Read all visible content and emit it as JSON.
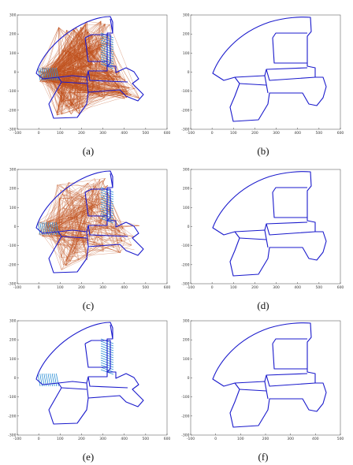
{
  "figure": {
    "panels": [
      {
        "id": "a",
        "caption": "(a)",
        "style": "edges-dense",
        "x_ticks": [
          "-100",
          "0",
          "100",
          "200",
          "300",
          "400",
          "500",
          "600"
        ],
        "y_ticks": [
          "300",
          "200",
          "100",
          "0",
          "-100",
          "-200",
          "-300"
        ]
      },
      {
        "id": "b",
        "caption": "(b)",
        "style": "clean",
        "x_ticks": [
          "-100",
          "0",
          "100",
          "200",
          "300",
          "400",
          "500",
          "600"
        ],
        "y_ticks": [
          "300",
          "200",
          "100",
          "0",
          "-100",
          "-200",
          "-300"
        ]
      },
      {
        "id": "c",
        "caption": "(c)",
        "style": "edges-sparse",
        "x_ticks": [
          "-100",
          "0",
          "100",
          "200",
          "300",
          "400",
          "500",
          "600"
        ],
        "y_ticks": [
          "300",
          "200",
          "100",
          "0",
          "-100",
          "-200",
          "-300"
        ]
      },
      {
        "id": "d",
        "caption": "(d)",
        "style": "clean",
        "x_ticks": [
          "-100",
          "0",
          "100",
          "200",
          "300",
          "400",
          "500",
          "600"
        ],
        "y_ticks": [
          "300",
          "200",
          "100",
          "0",
          "-100",
          "-200",
          "-300"
        ]
      },
      {
        "id": "e",
        "caption": "(e)",
        "style": "hatch-only",
        "x_ticks": [
          "-100",
          "0",
          "100",
          "200",
          "300",
          "400",
          "500",
          "600"
        ],
        "y_ticks": [
          "300",
          "200",
          "100",
          "0",
          "-100",
          "-200",
          "-300"
        ]
      },
      {
        "id": "f",
        "caption": "(f)",
        "style": "clean",
        "x_ticks": [
          "-100",
          "0",
          "100",
          "200",
          "300",
          "400",
          "500"
        ],
        "y_ticks": [
          "300",
          "200",
          "100",
          "0",
          "-100",
          "-200",
          "-300"
        ]
      }
    ],
    "colors": {
      "trajectory": "#1a1acc",
      "constraints": "#c0501c",
      "loop_closures": "#2d8fd5"
    }
  }
}
